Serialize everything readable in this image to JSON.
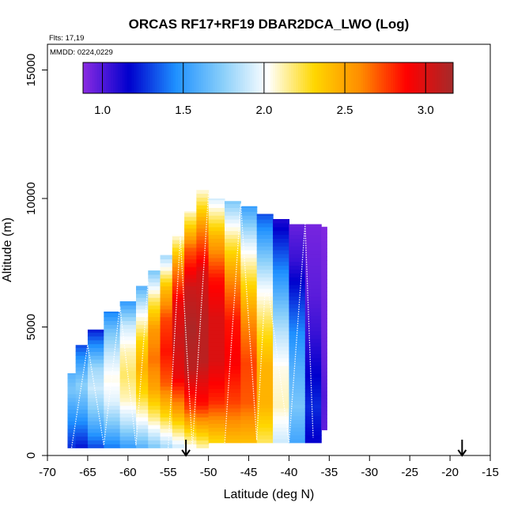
{
  "chart_data": {
    "type": "heatmap",
    "title": "ORCAS RF17+RF19 DBAR2DCA_LWO (Log)",
    "xlabel": "Latitude (deg N)",
    "ylabel": "Altitude (m)",
    "xlim": [
      -70,
      -15
    ],
    "ylim": [
      0,
      16000
    ],
    "x_ticks": [
      -70,
      -65,
      -60,
      -55,
      -50,
      -45,
      -40,
      -35,
      -30,
      -25,
      -20,
      -15
    ],
    "y_ticks": [
      0,
      5000,
      10000,
      15000
    ],
    "flights_text": "Flts: 17,19",
    "dates_text": "MMDD: 0224,0229",
    "colorbar": {
      "min": 0.88,
      "max": 3.17,
      "ticks": [
        1.0,
        1.5,
        2.0,
        2.5,
        3.0
      ],
      "tick_labels": [
        "1.0",
        "1.5",
        "2.0",
        "2.5",
        "3.0"
      ],
      "colors": [
        "#8a2be2",
        "#0000cd",
        "#1e90ff",
        "#87cefa",
        "#ffffff",
        "#ffd700",
        "#ff8c00",
        "#ff0000",
        "#a52a2a"
      ]
    },
    "columns": [
      {
        "lat_start": -67.5,
        "lat_end": -66.5,
        "alt_min": 300,
        "alt_max": 3200,
        "values": [
          1.25,
          1.4,
          1.55,
          1.7,
          1.6
        ]
      },
      {
        "lat_start": -66.5,
        "lat_end": -65.0,
        "alt_min": 300,
        "alt_max": 4300,
        "values": [
          1.2,
          1.4,
          1.6,
          1.75,
          1.55,
          1.3
        ]
      },
      {
        "lat_start": -65.0,
        "lat_end": -63.0,
        "alt_min": 300,
        "alt_max": 4900,
        "values": [
          1.3,
          1.55,
          1.75,
          1.9,
          1.8,
          1.5,
          1.2
        ]
      },
      {
        "lat_start": -63.0,
        "lat_end": -61.0,
        "alt_min": 300,
        "alt_max": 5600,
        "values": [
          1.4,
          1.7,
          1.95,
          2.05,
          1.9,
          1.7,
          1.4
        ]
      },
      {
        "lat_start": -61.0,
        "lat_end": -59.0,
        "alt_min": 300,
        "alt_max": 6000,
        "values": [
          1.5,
          1.85,
          2.1,
          2.2,
          2.1,
          1.9,
          1.5
        ]
      },
      {
        "lat_start": -59.0,
        "lat_end": -57.5,
        "alt_min": 300,
        "alt_max": 6600,
        "values": [
          1.6,
          2.0,
          2.3,
          2.45,
          2.3,
          2.0,
          1.6
        ]
      },
      {
        "lat_start": -57.5,
        "lat_end": -56.0,
        "alt_min": 300,
        "alt_max": 7200,
        "values": [
          1.7,
          2.15,
          2.5,
          2.65,
          2.55,
          2.2,
          1.7
        ]
      },
      {
        "lat_start": -56.0,
        "lat_end": -54.5,
        "alt_min": 300,
        "alt_max": 7800,
        "values": [
          1.8,
          2.3,
          2.7,
          2.85,
          2.75,
          2.4,
          1.8
        ]
      },
      {
        "lat_start": -54.5,
        "lat_end": -53.0,
        "alt_min": 300,
        "alt_max": 8600,
        "values": [
          1.9,
          2.5,
          2.95,
          3.05,
          2.95,
          2.6,
          2.0
        ]
      },
      {
        "lat_start": -53.0,
        "lat_end": -51.5,
        "alt_min": 300,
        "alt_max": 9500,
        "values": [
          2.0,
          2.75,
          3.1,
          3.15,
          3.05,
          2.7,
          2.05
        ]
      },
      {
        "lat_start": -51.5,
        "lat_end": -50.0,
        "alt_min": 300,
        "alt_max": 10400,
        "values": [
          2.1,
          2.85,
          3.1,
          3.1,
          3.0,
          2.6,
          2.0
        ]
      },
      {
        "lat_start": -50.0,
        "lat_end": -48.0,
        "alt_min": 500,
        "alt_max": 10000,
        "values": [
          2.3,
          2.8,
          3.0,
          3.0,
          2.85,
          2.45,
          1.9
        ]
      },
      {
        "lat_start": -48.0,
        "lat_end": -46.0,
        "alt_min": 500,
        "alt_max": 9900,
        "values": [
          2.4,
          2.75,
          2.9,
          2.85,
          2.6,
          2.2,
          1.7
        ]
      },
      {
        "lat_start": -46.0,
        "lat_end": -44.0,
        "alt_min": 500,
        "alt_max": 9700,
        "values": [
          2.4,
          2.7,
          2.75,
          2.6,
          2.3,
          1.95,
          1.5
        ]
      },
      {
        "lat_start": -44.0,
        "lat_end": -42.0,
        "alt_min": 500,
        "alt_max": 9400,
        "values": [
          2.2,
          2.45,
          2.45,
          2.25,
          2.0,
          1.65,
          1.3
        ]
      },
      {
        "lat_start": -42.0,
        "lat_end": -40.0,
        "alt_min": 500,
        "alt_max": 9200,
        "values": [
          1.9,
          2.1,
          2.05,
          1.85,
          1.6,
          1.35,
          1.1
        ]
      },
      {
        "lat_start": -40.0,
        "lat_end": -38.0,
        "alt_min": 500,
        "alt_max": 9000,
        "values": [
          1.55,
          1.7,
          1.6,
          1.45,
          1.25,
          1.05,
          0.95
        ]
      },
      {
        "lat_start": -38.0,
        "lat_end": -36.0,
        "alt_min": 500,
        "alt_max": 9000,
        "values": [
          1.15,
          1.25,
          1.15,
          1.05,
          0.98,
          0.95,
          0.92
        ]
      },
      {
        "lat_start": -36.0,
        "lat_end": -35.3,
        "alt_min": 1000,
        "alt_max": 8900,
        "values": [
          0.97,
          1.0,
          0.96,
          0.94,
          0.93,
          0.92,
          0.9
        ]
      }
    ],
    "flight_tracks": [
      {
        "name": "track-1",
        "lats": [
          -67,
          -65,
          -63,
          -61,
          -59,
          -57.5
        ],
        "alts": [
          300,
          4300,
          400,
          5800,
          400,
          6800
        ]
      },
      {
        "name": "track-2",
        "lats": [
          -55,
          -53.5,
          -52,
          -50
        ],
        "alts": [
          300,
          8500,
          300,
          10200
        ]
      },
      {
        "name": "track-3",
        "lats": [
          -48,
          -46,
          -44,
          -43,
          -42.5,
          -40,
          -38,
          -37
        ],
        "alts": [
          400,
          9800,
          600,
          6300,
          6300,
          500,
          9000,
          700
        ]
      }
    ],
    "markers": [
      {
        "lat": -52.8,
        "label": "down-arrow"
      },
      {
        "lat": -18.5,
        "label": "down-arrow"
      }
    ]
  }
}
